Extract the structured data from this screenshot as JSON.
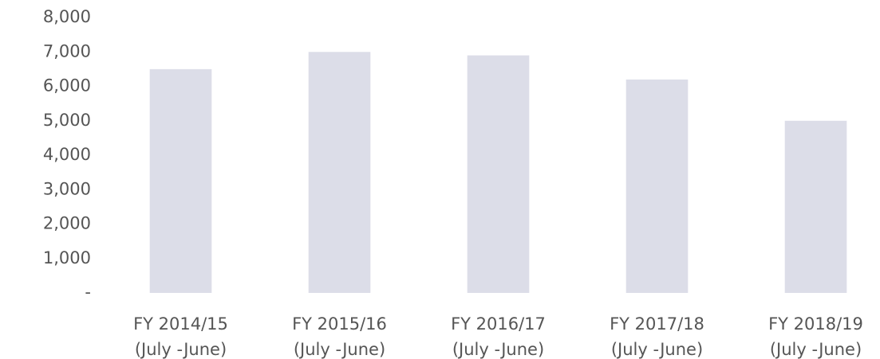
{
  "chart_data": {
    "type": "bar",
    "categories": [
      "FY 2014/15\n(July -June)",
      "FY 2015/16\n(July -June)",
      "FY 2016/17\n(July -June)",
      "FY 2017/18\n(July -June)",
      "FY 2018/19\n(July -June)"
    ],
    "values": [
      6500,
      7000,
      6900,
      6200,
      5000
    ],
    "color": "#dcdde8",
    "ylim": [
      0,
      8000
    ],
    "yticks": [
      {
        "value": 0,
        "label": "-"
      },
      {
        "value": 1000,
        "label": "1,000"
      },
      {
        "value": 2000,
        "label": "2,000"
      },
      {
        "value": 3000,
        "label": "3,000"
      },
      {
        "value": 4000,
        "label": "4,000"
      },
      {
        "value": 5000,
        "label": "5,000"
      },
      {
        "value": 6000,
        "label": "6,000"
      },
      {
        "value": 7000,
        "label": "7,000"
      },
      {
        "value": 8000,
        "label": "8,000"
      }
    ],
    "grid": false
  }
}
